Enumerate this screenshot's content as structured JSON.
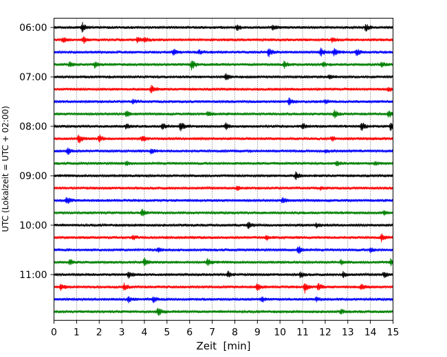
{
  "chart_data": {
    "type": "line",
    "title": "",
    "xlabel": "Zeit  [min]",
    "ylabel": "UTC (Lokalzeit = UTC + 02:00)",
    "xlim": [
      0,
      15
    ],
    "x_ticks": [
      "0",
      "1",
      "2",
      "3",
      "4",
      "5",
      "6",
      "7",
      "8",
      "9",
      "10",
      "11",
      "12",
      "13",
      "14",
      "15"
    ],
    "row_interval_minutes": 15,
    "start_time": "06:00",
    "row_count": 24,
    "y_ticks": [
      "06:00",
      "07:00",
      "08:00",
      "09:00",
      "10:00",
      "11:00"
    ],
    "grid": "vertical dotted lines at each minute",
    "trace_colors": [
      "#000000",
      "#ff0000",
      "#0000ff",
      "#008000"
    ],
    "traces": [
      {
        "time": "06:00",
        "events": [
          [
            1.25,
            0.9
          ],
          [
            8.1,
            0.6
          ],
          [
            9.7,
            0.5
          ],
          [
            13.8,
            0.7
          ]
        ]
      },
      {
        "time": "06:15",
        "events": [
          [
            0.4,
            0.5
          ],
          [
            1.3,
            0.7
          ],
          [
            3.7,
            0.6
          ],
          [
            4.0,
            0.5
          ],
          [
            12.3,
            0.4
          ]
        ]
      },
      {
        "time": "06:30",
        "events": [
          [
            5.3,
            0.6
          ],
          [
            6.4,
            0.4
          ],
          [
            9.5,
            1.0
          ],
          [
            11.8,
            0.9
          ],
          [
            12.4,
            0.8
          ],
          [
            13.4,
            0.7
          ]
        ]
      },
      {
        "time": "06:45",
        "events": [
          [
            0.7,
            0.6
          ],
          [
            1.8,
            0.7
          ],
          [
            6.1,
            1.1
          ],
          [
            10.2,
            0.7
          ],
          [
            11.9,
            0.5
          ],
          [
            14.5,
            0.6
          ]
        ]
      },
      {
        "time": "07:00",
        "events": [
          [
            7.6,
            0.7
          ],
          [
            12.2,
            0.5
          ]
        ]
      },
      {
        "time": "07:15",
        "events": [
          [
            4.3,
            0.8
          ],
          [
            14.8,
            0.5
          ]
        ]
      },
      {
        "time": "07:30",
        "events": [
          [
            3.5,
            0.4
          ],
          [
            10.4,
            0.7
          ],
          [
            12.0,
            0.4
          ]
        ]
      },
      {
        "time": "07:45",
        "events": [
          [
            3.2,
            0.6
          ],
          [
            6.8,
            0.5
          ],
          [
            12.4,
            0.9
          ],
          [
            14.8,
            0.8
          ]
        ]
      },
      {
        "time": "08:00",
        "events": [
          [
            3.2,
            0.6
          ],
          [
            4.8,
            0.7
          ],
          [
            5.6,
            0.9
          ],
          [
            7.6,
            0.7
          ],
          [
            11.0,
            0.6
          ],
          [
            13.6,
            0.9
          ],
          [
            14.9,
            1.0
          ]
        ]
      },
      {
        "time": "08:15",
        "events": [
          [
            1.1,
            0.9
          ],
          [
            2.0,
            0.8
          ],
          [
            3.9,
            0.6
          ],
          [
            12.3,
            0.4
          ]
        ]
      },
      {
        "time": "08:30",
        "events": [
          [
            0.6,
            0.7
          ],
          [
            4.3,
            0.5
          ],
          [
            12.0,
            0.3
          ]
        ]
      },
      {
        "time": "08:45",
        "events": [
          [
            3.2,
            0.4
          ],
          [
            12.5,
            0.4
          ],
          [
            14.2,
            0.5
          ]
        ]
      },
      {
        "time": "09:00",
        "events": [
          [
            10.7,
            0.8
          ]
        ]
      },
      {
        "time": "09:15",
        "events": [
          [
            8.1,
            0.4
          ],
          [
            11.8,
            0.3
          ]
        ]
      },
      {
        "time": "09:30",
        "events": [
          [
            0.55,
            0.9
          ],
          [
            10.1,
            0.6
          ]
        ]
      },
      {
        "time": "09:45",
        "events": [
          [
            3.9,
            0.7
          ],
          [
            14.6,
            0.4
          ]
        ]
      },
      {
        "time": "10:00",
        "events": [
          [
            8.6,
            0.7
          ],
          [
            11.6,
            0.4
          ]
        ]
      },
      {
        "time": "10:15",
        "events": [
          [
            3.5,
            0.4
          ],
          [
            9.4,
            0.4
          ],
          [
            14.5,
            0.8
          ]
        ]
      },
      {
        "time": "10:30",
        "events": [
          [
            4.6,
            0.4
          ],
          [
            10.8,
            0.9
          ],
          [
            14.0,
            0.5
          ]
        ]
      },
      {
        "time": "10:45",
        "events": [
          [
            0.7,
            0.6
          ],
          [
            4.0,
            0.9
          ],
          [
            6.8,
            0.8
          ],
          [
            12.7,
            0.5
          ],
          [
            14.9,
            0.7
          ]
        ]
      },
      {
        "time": "11:00",
        "events": [
          [
            3.3,
            0.6
          ],
          [
            7.7,
            0.7
          ],
          [
            10.9,
            0.6
          ],
          [
            12.8,
            0.6
          ],
          [
            14.6,
            0.6
          ]
        ]
      },
      {
        "time": "11:15",
        "events": [
          [
            0.3,
            0.7
          ],
          [
            3.1,
            0.7
          ],
          [
            9.0,
            0.8
          ],
          [
            11.1,
            1.1
          ],
          [
            11.7,
            0.8
          ],
          [
            13.6,
            0.6
          ]
        ]
      },
      {
        "time": "11:30",
        "events": [
          [
            3.3,
            0.6
          ],
          [
            4.4,
            0.6
          ],
          [
            9.2,
            0.5
          ],
          [
            11.6,
            0.4
          ]
        ]
      },
      {
        "time": "11:45",
        "events": [
          [
            4.6,
            0.8
          ],
          [
            12.7,
            0.4
          ]
        ]
      }
    ]
  }
}
